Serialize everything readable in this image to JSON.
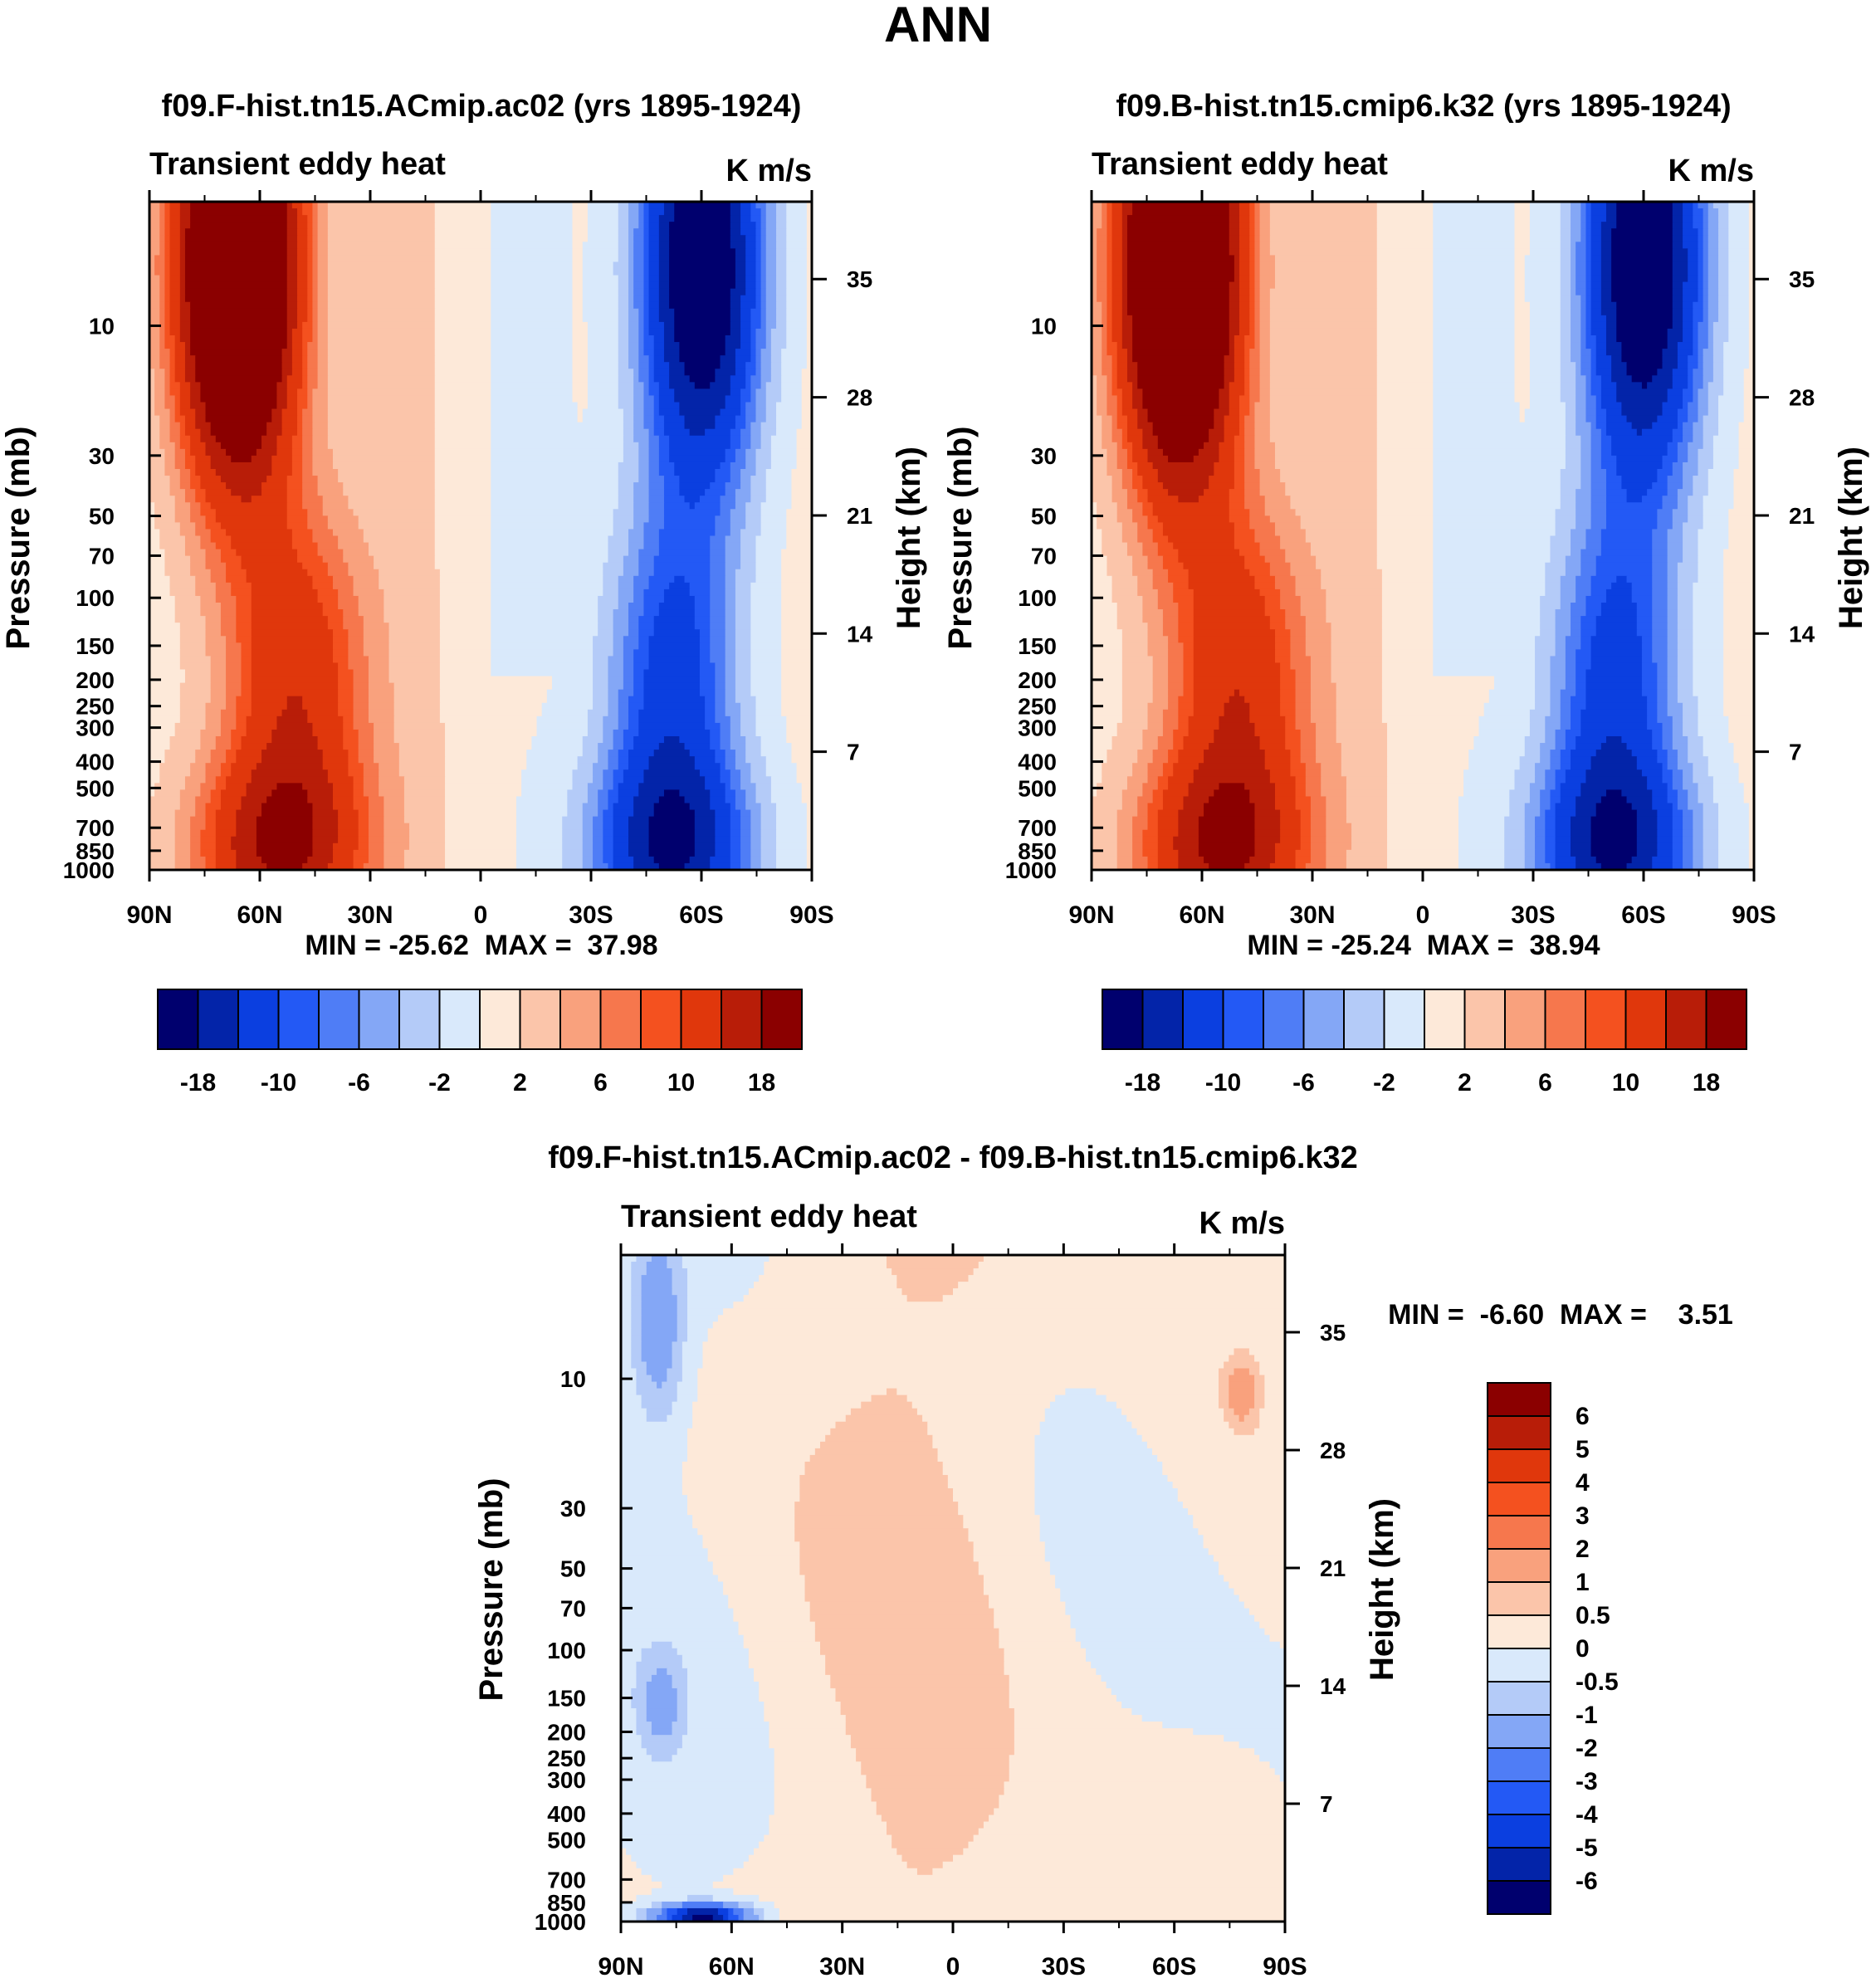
{
  "main_title": "ANN",
  "colors": {
    "full": [
      "#00006e",
      "#0324a9",
      "#0b3fe0",
      "#2359f5",
      "#4f7df6",
      "#84a7f6",
      "#b4cbf8",
      "#d9e9fb",
      "#fde9d9",
      "#fbc5aa",
      "#f9a17d",
      "#f6774d",
      "#f4511f",
      "#e0370c",
      "#b81d08",
      "#8b0000"
    ],
    "diff": [
      "#00006e",
      "#0324a9",
      "#0b3fe0",
      "#2359f5",
      "#4f7df6",
      "#84a7f6",
      "#b4cbf8",
      "#d9e9fb",
      "#fde9d9",
      "#fbc5aa",
      "#f9a17d",
      "#f6774d",
      "#f4511f",
      "#e0370c",
      "#b81d08",
      "#8b0000"
    ]
  },
  "chart_data": [
    {
      "type": "heatmap",
      "title": "f09.F-hist.tn15.ACmip.ac02 (yrs 1895-1924)",
      "subtitle_left": "Transient eddy heat",
      "subtitle_right": "K m/s",
      "xlabel": "",
      "ylabel": "Pressure (mb)",
      "ylabel_right": "Height (km)",
      "x_ticks": [
        "90N",
        "60N",
        "30N",
        "0",
        "30S",
        "60S",
        "90S"
      ],
      "x_values": [
        90,
        60,
        30,
        0,
        -30,
        -60,
        -90
      ],
      "xlim": [
        90,
        -90
      ],
      "y_ticks": [
        "10",
        "30",
        "50",
        "70",
        "100",
        "150",
        "200",
        "250",
        "300",
        "400",
        "500",
        "700",
        "850",
        "1000"
      ],
      "y_values": [
        10,
        30,
        50,
        70,
        100,
        150,
        200,
        250,
        300,
        400,
        500,
        700,
        850,
        1000
      ],
      "ylim": [
        1000,
        3.5
      ],
      "y_right_ticks": [
        "35",
        "28",
        "21",
        "14",
        "7"
      ],
      "y_right_values": [
        35,
        28,
        21,
        14,
        7
      ],
      "stats": "MIN = -25.62  MAX =  37.98",
      "min": -25.62,
      "max": 37.98,
      "colorbar_labels": [
        "-18",
        "-10",
        "-6",
        "-2",
        "2",
        "6",
        "10",
        "18"
      ],
      "colorbar_levels": [
        -18,
        -14,
        -10,
        -8,
        -6,
        -4,
        -2,
        0,
        2,
        4,
        6,
        8,
        10,
        14,
        18
      ],
      "features": [
        {
          "lat": 66,
          "p": 6,
          "sign": 1,
          "peak": 37.98,
          "lat_width": 11,
          "logp_width": 0.55
        },
        {
          "lat": 50,
          "p": 200,
          "sign": 1,
          "peak": 12,
          "lat_width": 13,
          "logp_width": 0.45
        },
        {
          "lat": 55,
          "p": 850,
          "sign": 1,
          "peak": 15,
          "lat_width": 16,
          "logp_width": 0.25
        },
        {
          "lat": -60,
          "p": 6,
          "sign": -1,
          "peak": 25.62,
          "lat_width": 11,
          "logp_width": 0.55
        },
        {
          "lat": -52,
          "p": 200,
          "sign": -1,
          "peak": 12,
          "lat_width": 12,
          "logp_width": 0.45
        },
        {
          "lat": -52,
          "p": 850,
          "sign": -1,
          "peak": 16,
          "lat_width": 15,
          "logp_width": 0.25
        }
      ]
    },
    {
      "type": "heatmap",
      "title": "f09.B-hist.tn15.cmip6.k32 (yrs 1895-1924)",
      "subtitle_left": "Transient eddy heat",
      "subtitle_right": "K m/s",
      "xlabel": "",
      "ylabel": "Pressure (mb)",
      "ylabel_right": "Height (km)",
      "x_ticks": [
        "90N",
        "60N",
        "30N",
        "0",
        "30S",
        "60S",
        "90S"
      ],
      "x_values": [
        90,
        60,
        30,
        0,
        -30,
        -60,
        -90
      ],
      "xlim": [
        90,
        -90
      ],
      "y_ticks": [
        "10",
        "30",
        "50",
        "70",
        "100",
        "150",
        "200",
        "250",
        "300",
        "400",
        "500",
        "700",
        "850",
        "1000"
      ],
      "y_values": [
        10,
        30,
        50,
        70,
        100,
        150,
        200,
        250,
        300,
        400,
        500,
        700,
        850,
        1000
      ],
      "ylim": [
        1000,
        3.5
      ],
      "y_right_ticks": [
        "35",
        "28",
        "21",
        "14",
        "7"
      ],
      "y_right_values": [
        35,
        28,
        21,
        14,
        7
      ],
      "stats": "MIN = -25.24  MAX =  38.94",
      "min": -25.24,
      "max": 38.94,
      "colorbar_labels": [
        "-18",
        "-10",
        "-6",
        "-2",
        "2",
        "6",
        "10",
        "18"
      ],
      "colorbar_levels": [
        -18,
        -14,
        -10,
        -8,
        -6,
        -4,
        -2,
        0,
        2,
        4,
        6,
        8,
        10,
        14,
        18
      ],
      "features": [
        {
          "lat": 66,
          "p": 6,
          "sign": 1,
          "peak": 38.94,
          "lat_width": 11,
          "logp_width": 0.55
        },
        {
          "lat": 50,
          "p": 200,
          "sign": 1,
          "peak": 12,
          "lat_width": 13,
          "logp_width": 0.45
        },
        {
          "lat": 55,
          "p": 850,
          "sign": 1,
          "peak": 15,
          "lat_width": 16,
          "logp_width": 0.25
        },
        {
          "lat": -60,
          "p": 6,
          "sign": -1,
          "peak": 25.24,
          "lat_width": 11,
          "logp_width": 0.55
        },
        {
          "lat": -52,
          "p": 200,
          "sign": -1,
          "peak": 12,
          "lat_width": 12,
          "logp_width": 0.45
        },
        {
          "lat": -52,
          "p": 850,
          "sign": -1,
          "peak": 16,
          "lat_width": 15,
          "logp_width": 0.25
        }
      ]
    },
    {
      "type": "heatmap",
      "title": "f09.F-hist.tn15.ACmip.ac02 - f09.B-hist.tn15.cmip6.k32",
      "subtitle_left": "Transient eddy heat",
      "subtitle_right": "K m/s",
      "xlabel": "",
      "ylabel": "Pressure (mb)",
      "ylabel_right": "Height (km)",
      "x_ticks": [
        "90N",
        "60N",
        "30N",
        "0",
        "30S",
        "60S",
        "90S"
      ],
      "x_values": [
        90,
        60,
        30,
        0,
        -30,
        -60,
        -90
      ],
      "xlim": [
        90,
        -90
      ],
      "y_ticks": [
        "10",
        "30",
        "50",
        "70",
        "100",
        "150",
        "200",
        "250",
        "300",
        "400",
        "500",
        "700",
        "850",
        "1000"
      ],
      "y_values": [
        10,
        30,
        50,
        70,
        100,
        150,
        200,
        250,
        300,
        400,
        500,
        700,
        850,
        1000
      ],
      "ylim": [
        1000,
        3.5
      ],
      "y_right_ticks": [
        "35",
        "28",
        "21",
        "14",
        "7"
      ],
      "y_right_values": [
        35,
        28,
        21,
        14,
        7
      ],
      "stats": "MIN =  -6.60  MAX =    3.51",
      "min": -6.6,
      "max": 3.51,
      "colorbar_labels": [
        "6",
        "5",
        "4",
        "3",
        "2",
        "1",
        "0.5",
        "0",
        "-0.5",
        "-1",
        "-2",
        "-3",
        "-4",
        "-5",
        "-6"
      ],
      "colorbar_levels": [
        -6,
        -5,
        -4,
        -3,
        -2,
        -1,
        -0.5,
        0,
        0.5,
        1,
        2,
        3,
        4,
        5,
        6
      ]
    }
  ]
}
